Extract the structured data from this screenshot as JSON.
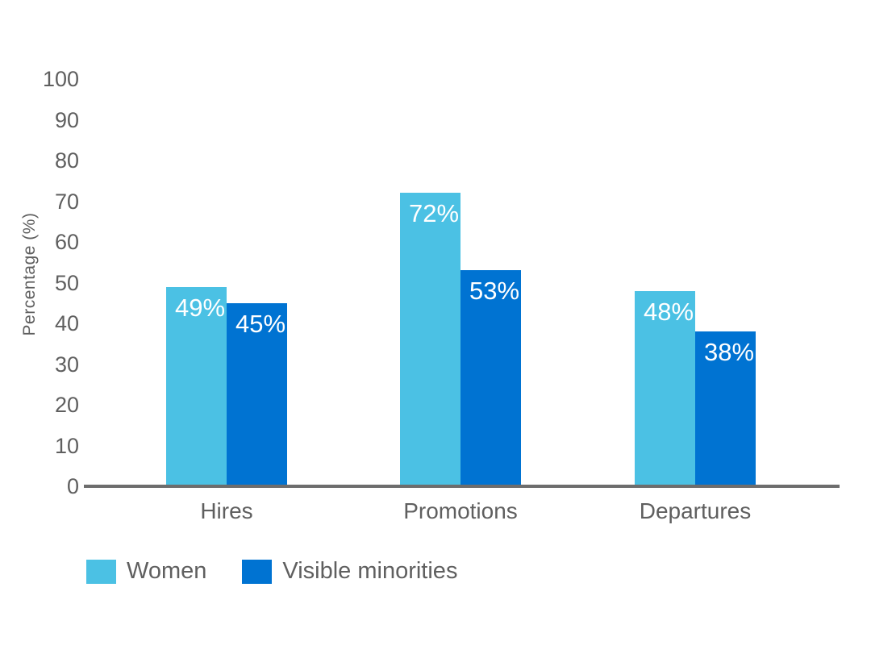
{
  "chart_data": {
    "type": "bar",
    "title": "",
    "xlabel": "",
    "ylabel": "Percentage (%)",
    "ylim": [
      0,
      100
    ],
    "yticks": [
      "0",
      "10",
      "20",
      "30",
      "40",
      "50",
      "60",
      "70",
      "80",
      "90",
      "100"
    ],
    "ytick_values": [
      0,
      10,
      20,
      30,
      40,
      50,
      60,
      70,
      80,
      90,
      100
    ],
    "grid": false,
    "legend_position": "bottom-left",
    "categories": [
      "Hires",
      "Promotions",
      "Departures"
    ],
    "series": [
      {
        "name": "Women",
        "color": "#4BC1E4",
        "values": [
          49,
          72,
          48
        ],
        "labels": [
          "49%",
          "72%",
          "48%"
        ]
      },
      {
        "name": "Visible minorities",
        "color": "#0073D2",
        "values": [
          45,
          53,
          38
        ],
        "labels": [
          "45%",
          "53%",
          "38%"
        ]
      }
    ]
  },
  "colors": {
    "background": "#FFFFFF",
    "axis_line": "#6D6D6D",
    "tick_text": "#5F5F5F",
    "value_label_text": "#FFFFFF"
  }
}
